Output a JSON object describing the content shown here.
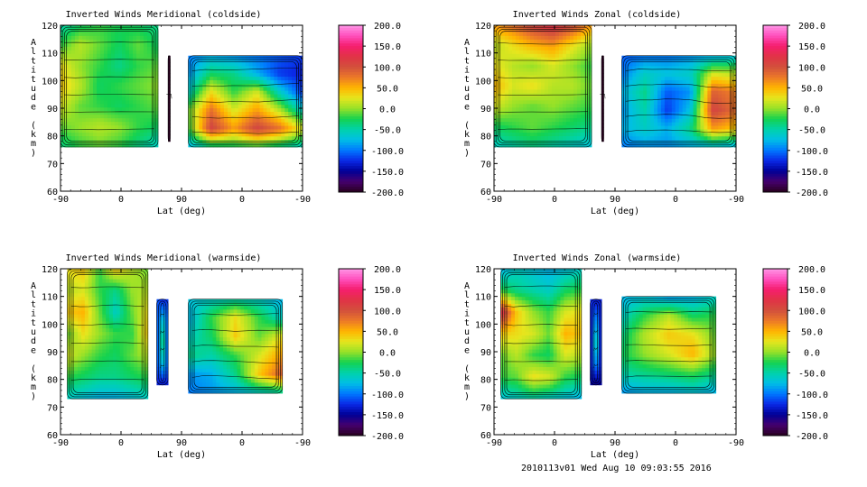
{
  "chart_data": [
    {
      "type": "heatmap",
      "title": "Inverted Winds Meridional (coldside)",
      "xlabel": "Lat (deg)",
      "ylabel": "Altitude (km)",
      "x_tick_labels": [
        "-90",
        "0",
        "90",
        "0",
        "-90"
      ],
      "y_ticks": [
        60,
        70,
        80,
        90,
        100,
        110,
        120
      ],
      "ylim": [
        60,
        120
      ],
      "colorbar_ticks": [
        "200.0",
        "150.0",
        "100.0",
        "50.0",
        "0.0",
        "-50.0",
        "-100.0",
        "-150.0",
        "-200.0"
      ],
      "colorbar_range": [
        -200,
        200
      ],
      "regions": [
        {
          "lat_range": [
            -90,
            55
          ],
          "alt_range": [
            76,
            120
          ],
          "values": [
            [
              -50,
              -30,
              -20,
              -25,
              -30,
              -40
            ],
            [
              -20,
              10,
              -10,
              -30,
              -10,
              -30
            ],
            [
              30,
              0,
              -20,
              -40,
              -20,
              -10
            ],
            [
              40,
              10,
              -30,
              -20,
              -10,
              0
            ],
            [
              20,
              -10,
              -20,
              -30,
              -20,
              -10
            ],
            [
              -10,
              0,
              10,
              0,
              -20,
              -30
            ],
            [
              -40,
              -20,
              -10,
              -20,
              -40,
              -60
            ]
          ]
        },
        {
          "lat_range": [
            70,
            73
          ],
          "alt_range": [
            78,
            109
          ],
          "values": [
            [
              -200,
              -200
            ],
            [
              -200,
              -200
            ]
          ]
        },
        {
          "lat_range": [
            80,
            -90
          ],
          "alt_range": [
            76,
            109
          ],
          "values": [
            [
              -100,
              -80,
              -90,
              -100,
              -110,
              -120
            ],
            [
              -90,
              -30,
              -40,
              -80,
              -120,
              -130
            ],
            [
              -60,
              30,
              -20,
              20,
              -60,
              -120
            ],
            [
              -10,
              80,
              20,
              60,
              10,
              -60
            ],
            [
              -20,
              110,
              60,
              110,
              80,
              20
            ],
            [
              -80,
              -40,
              -30,
              -20,
              -40,
              -60
            ]
          ]
        }
      ]
    },
    {
      "type": "heatmap",
      "title": "Inverted Winds Zonal (coldside)",
      "xlabel": "Lat (deg)",
      "ylabel": "Altitude (km)",
      "x_tick_labels": [
        "-90",
        "0",
        "90",
        "0",
        "-90"
      ],
      "y_ticks": [
        60,
        70,
        80,
        90,
        100,
        110,
        120
      ],
      "ylim": [
        60,
        120
      ],
      "colorbar_ticks": [
        "200.0",
        "150.0",
        "100.0",
        "50.0",
        "0.0",
        "-50.0",
        "-100.0",
        "-150.0",
        "-200.0"
      ],
      "colorbar_range": [
        -200,
        200
      ],
      "regions": [
        {
          "lat_range": [
            -90,
            55
          ],
          "alt_range": [
            76,
            120
          ],
          "values": [
            [
              60,
              80,
              110,
              130,
              100,
              60
            ],
            [
              10,
              30,
              50,
              60,
              30,
              0
            ],
            [
              30,
              10,
              0,
              20,
              0,
              -20
            ],
            [
              50,
              20,
              30,
              10,
              10,
              -10
            ],
            [
              20,
              0,
              -10,
              0,
              -10,
              -20
            ],
            [
              -30,
              -20,
              -10,
              -20,
              -30,
              -40
            ],
            [
              -60,
              -50,
              -40,
              -50,
              -60,
              -70
            ]
          ]
        },
        {
          "lat_range": [
            70,
            73
          ],
          "alt_range": [
            78,
            109
          ],
          "values": [
            [
              -200,
              -200
            ],
            [
              -200,
              -200
            ]
          ]
        },
        {
          "lat_range": [
            80,
            -90
          ],
          "alt_range": [
            76,
            109
          ],
          "values": [
            [
              -110,
              -100,
              -100,
              -90,
              -80,
              -70
            ],
            [
              -100,
              -60,
              -70,
              -60,
              20,
              10
            ],
            [
              -80,
              -40,
              -110,
              -90,
              90,
              70
            ],
            [
              -90,
              -50,
              -120,
              -70,
              110,
              80
            ],
            [
              -80,
              -60,
              -80,
              -40,
              60,
              40
            ],
            [
              -100,
              -90,
              -90,
              -80,
              -70,
              -80
            ]
          ]
        }
      ]
    },
    {
      "type": "heatmap",
      "title": "Inverted Winds Meridional (warmside)",
      "xlabel": "Lat (deg)",
      "ylabel": "Altitude (km)",
      "x_tick_labels": [
        "-90",
        "0",
        "90",
        "0",
        "-90"
      ],
      "y_ticks": [
        60,
        70,
        80,
        90,
        100,
        110,
        120
      ],
      "ylim": [
        60,
        120
      ],
      "colorbar_ticks": [
        "200.0",
        "150.0",
        "100.0",
        "50.0",
        "0.0",
        "-50.0",
        "-100.0",
        "-150.0",
        "-200.0"
      ],
      "colorbar_range": [
        -200,
        200
      ],
      "regions": [
        {
          "lat_range": [
            -80,
            40
          ],
          "alt_range": [
            73,
            120
          ],
          "values": [
            [
              30,
              40,
              -20,
              40,
              10,
              -10
            ],
            [
              10,
              20,
              -20,
              -40,
              0,
              10
            ],
            [
              40,
              50,
              -10,
              -60,
              -10,
              30
            ],
            [
              -10,
              30,
              0,
              -20,
              -20,
              40
            ],
            [
              20,
              0,
              -20,
              -30,
              -10,
              10
            ],
            [
              -20,
              -30,
              -40,
              -40,
              -30,
              -20
            ],
            [
              -60,
              -70,
              -80,
              -80,
              -70,
              -60
            ]
          ]
        },
        {
          "lat_range": [
            53,
            70
          ],
          "alt_range": [
            78,
            109
          ],
          "values": [
            [
              -110,
              -130,
              -120
            ],
            [
              -120,
              -60,
              -110
            ],
            [
              -130,
              -20,
              -120
            ],
            [
              -120,
              -60,
              -110
            ],
            [
              -130,
              -140,
              -130
            ]
          ]
        },
        {
          "lat_range": [
            80,
            -60
          ],
          "alt_range": [
            75,
            109
          ],
          "values": [
            [
              -70,
              -60,
              -50,
              -60,
              -80
            ],
            [
              -80,
              -20,
              30,
              -20,
              -60
            ],
            [
              -60,
              -30,
              40,
              -10,
              30
            ],
            [
              -40,
              -50,
              -20,
              20,
              60
            ],
            [
              -90,
              -80,
              -40,
              40,
              90
            ],
            [
              -100,
              -90,
              -80,
              -60,
              -50
            ]
          ]
        }
      ]
    },
    {
      "type": "heatmap",
      "title": "Inverted Winds Zonal (warmside)",
      "xlabel": "Lat (deg)",
      "ylabel": "Altitude (km)",
      "x_tick_labels": [
        "-90",
        "0",
        "90",
        "0",
        "-90"
      ],
      "y_ticks": [
        60,
        70,
        80,
        90,
        100,
        110,
        120
      ],
      "ylim": [
        60,
        120
      ],
      "colorbar_ticks": [
        "200.0",
        "150.0",
        "100.0",
        "50.0",
        "0.0",
        "-50.0",
        "-100.0",
        "-150.0",
        "-200.0"
      ],
      "colorbar_range": [
        -200,
        200
      ],
      "regions": [
        {
          "lat_range": [
            -80,
            40
          ],
          "alt_range": [
            73,
            120
          ],
          "values": [
            [
              -80,
              -60,
              -70,
              -80,
              -70,
              -60
            ],
            [
              -20,
              -40,
              -50,
              -60,
              -30,
              -20
            ],
            [
              130,
              40,
              0,
              -20,
              20,
              30
            ],
            [
              40,
              30,
              20,
              -10,
              50,
              40
            ],
            [
              -10,
              10,
              -20,
              -30,
              20,
              10
            ],
            [
              -20,
              -10,
              30,
              20,
              -20,
              -30
            ],
            [
              -70,
              -60,
              -50,
              -60,
              -70,
              -80
            ]
          ]
        },
        {
          "lat_range": [
            53,
            70
          ],
          "alt_range": [
            78,
            109
          ],
          "values": [
            [
              -120,
              -140,
              -130
            ],
            [
              -140,
              -80,
              -140
            ],
            [
              -150,
              -40,
              -150
            ],
            [
              -140,
              -80,
              -140
            ],
            [
              -150,
              -160,
              -150
            ]
          ]
        },
        {
          "lat_range": [
            80,
            -60
          ],
          "alt_range": [
            75,
            110
          ],
          "values": [
            [
              -80,
              -70,
              -90,
              -80,
              -60
            ],
            [
              -60,
              -20,
              10,
              -30,
              -20
            ],
            [
              -40,
              10,
              40,
              30,
              -10
            ],
            [
              -30,
              0,
              20,
              50,
              0
            ],
            [
              -50,
              -40,
              -30,
              -20,
              -40
            ],
            [
              -90,
              -80,
              -80,
              -70,
              -80
            ]
          ]
        }
      ]
    }
  ],
  "footer": {
    "timestamp": "2010113v01 Wed Aug 10 09:03:55 2016"
  }
}
